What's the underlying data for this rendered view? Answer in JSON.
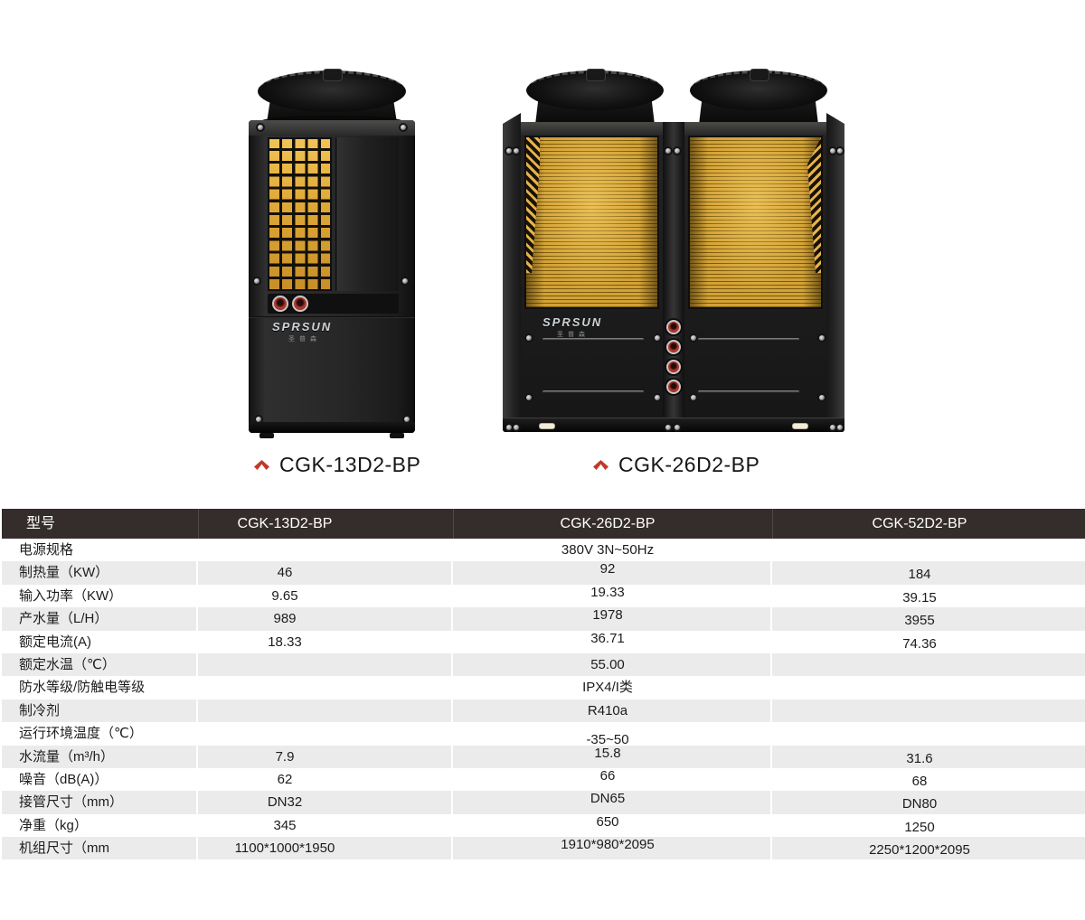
{
  "brand": {
    "logo": "SPRSUN",
    "logo_cn": "圣普森"
  },
  "products": [
    {
      "label": "CGK-13D2-BP"
    },
    {
      "label": "CGK-26D2-BP"
    }
  ],
  "table": {
    "header": {
      "model_label": "型号",
      "columns": [
        "CGK-13D2-BP",
        "CGK-26D2-BP",
        "CGK-52D2-BP"
      ]
    },
    "rows": [
      {
        "label": "电源规格",
        "span": "380V 3N~50Hz"
      },
      {
        "label": "制热量（KW）",
        "values": [
          "46",
          "92",
          "184"
        ]
      },
      {
        "label": "输入功率（KW）",
        "values": [
          "9.65",
          "19.33",
          "39.15"
        ]
      },
      {
        "label": "产水量（L/H）",
        "values": [
          "989",
          "1978",
          "3955"
        ]
      },
      {
        "label": "额定电流(A)",
        "values": [
          "18.33",
          "36.71",
          "74.36"
        ]
      },
      {
        "label": "额定水温（℃）",
        "span": "55.00"
      },
      {
        "label": "防水等级/防触电等级",
        "span": "IPX4/I类"
      },
      {
        "label": "制冷剂",
        "span": "R410a"
      },
      {
        "label": "运行环境温度（℃）",
        "span": "-35~50",
        "span_offset": "low"
      },
      {
        "label": "水流量（m³/h）",
        "values": [
          "7.9",
          "15.8",
          "31.6"
        ]
      },
      {
        "label": "噪音（dB(A)）",
        "values": [
          "62",
          "66",
          "68"
        ]
      },
      {
        "label": "接管尺寸（mm）",
        "values": [
          "DN32",
          "DN65",
          "DN80"
        ]
      },
      {
        "label": "净重（kg）",
        "values": [
          "345",
          "650",
          "1250"
        ]
      },
      {
        "label": "机组尺寸（mm",
        "values": [
          "1100*1000*1950",
          "1910*980*2095",
          "2250*1200*2095"
        ]
      }
    ]
  },
  "colors": {
    "accent_red": "#c0392b",
    "coil_gold": "#dfa735",
    "table_header_bg": "#342d2b",
    "row_alt_bg": "#ebebeb"
  }
}
